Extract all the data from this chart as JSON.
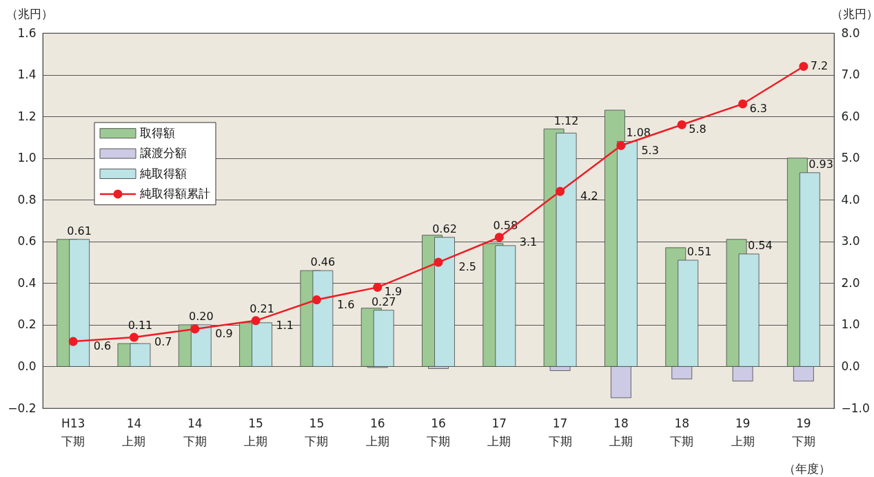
{
  "chart_data": {
    "type": "bar",
    "categories": [
      "H13\n下期",
      "14\n上期",
      "14\n下期",
      "15\n上期",
      "15\n下期",
      "16\n上期",
      "16\n下期",
      "17\n上期",
      "17\n下期",
      "18\n上期",
      "18\n下期",
      "19\n上期",
      "19\n下期"
    ],
    "xlabel": "（年度）",
    "ylabel": "（兆円）",
    "y2label": "（兆円）",
    "ylim": [
      -0.2,
      1.6
    ],
    "yticks": [
      {
        "value": -0.2,
        "label": "−0.2"
      },
      {
        "value": 0,
        "label": "0.0"
      },
      0.2,
      0.4,
      0.6,
      0.8,
      {
        "value": 1,
        "label": "1.0"
      },
      1.2,
      1.4,
      1.6
    ],
    "y2lim": [
      -1,
      8
    ],
    "y2ticks": [
      {
        "value": -1,
        "label": "−1.0"
      },
      {
        "value": 0,
        "label": "0.0"
      },
      {
        "value": 1,
        "label": "1.0"
      },
      {
        "value": 2,
        "label": "2.0"
      },
      {
        "value": 3,
        "label": "3.0"
      },
      {
        "value": 4,
        "label": "4.0"
      },
      {
        "value": 5,
        "label": "5.0"
      },
      {
        "value": 6,
        "label": "6.0"
      },
      {
        "value": 7,
        "label": "7.0"
      },
      {
        "value": 8,
        "label": "8.0"
      }
    ],
    "grid": "y",
    "legend": "top left",
    "marker": "circle",
    "series": [
      {
        "name": "取得額",
        "color": "#9dc994",
        "values": [
          0.61,
          0.11,
          0.2,
          0.21,
          0.46,
          0.28,
          0.63,
          0.59,
          1.14,
          1.23,
          0.57,
          0.61,
          1.0
        ]
      },
      {
        "name": "譲渡分額",
        "color": "#cccae4",
        "values": [
          null,
          null,
          null,
          null,
          null,
          -0.005,
          -0.01,
          null,
          -0.02,
          -0.15,
          -0.06,
          -0.07,
          -0.07
        ]
      },
      {
        "name": "純取得額",
        "color": "#bce3e6",
        "values": [
          0.61,
          0.11,
          0.2,
          0.21,
          0.46,
          0.27,
          0.62,
          0.58,
          1.12,
          1.08,
          0.51,
          0.54,
          0.93
        ],
        "value_labels": [
          "0.61",
          "0.11",
          "0.20",
          "0.21",
          "0.46",
          "0.27",
          "0.62",
          "0.58",
          "1.12",
          "1.08",
          "0.51",
          "0.54",
          "0.93"
        ]
      },
      {
        "name": "純取得額累計",
        "type": "line",
        "axis": "y2",
        "color": "#ee1c25",
        "values": [
          0.6,
          0.7,
          0.9,
          1.1,
          1.6,
          1.9,
          2.5,
          3.1,
          4.2,
          5.3,
          5.8,
          6.3,
          7.2
        ],
        "value_labels": [
          "0.6",
          "0.7",
          "0.9",
          "1.1",
          "1.6",
          "1.9",
          "2.5",
          "3.1",
          "4.2",
          "5.3",
          "5.8",
          "6.3",
          "7.2"
        ]
      }
    ]
  }
}
